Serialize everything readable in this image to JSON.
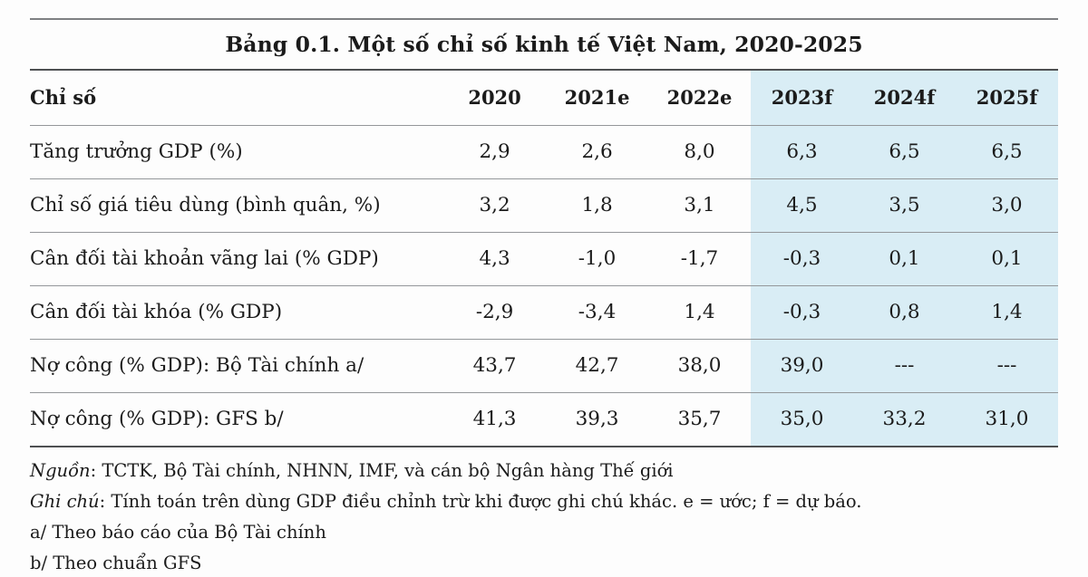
{
  "title": "Bảng 0.1. Một số chỉ số kinh tế Việt Nam, 2020-2025",
  "table": {
    "header": {
      "indicator": "Chỉ số",
      "years": [
        "2020",
        "2021e",
        "2022e",
        "2023f",
        "2024f",
        "2025f"
      ]
    },
    "rows": [
      {
        "label": "Tăng trưởng GDP (%)",
        "values": [
          "2,9",
          "2,6",
          "8,0",
          "6,3",
          "6,5",
          "6,5"
        ]
      },
      {
        "label": "Chỉ số giá tiêu dùng (bình quân, %)",
        "values": [
          "3,2",
          "1,8",
          "3,1",
          "4,5",
          "3,5",
          "3,0"
        ]
      },
      {
        "label": "Cân đối tài khoản vãng lai (% GDP)",
        "values": [
          "4,3",
          "-1,0",
          "-1,7",
          "-0,3",
          "0,1",
          "0,1"
        ]
      },
      {
        "label": "Cân đối tài khóa (% GDP)",
        "values": [
          "-2,9",
          "-3,4",
          "1,4",
          "-0,3",
          "0,8",
          "1,4"
        ]
      },
      {
        "label": "Nợ công (% GDP): Bộ Tài chính a/",
        "values": [
          "43,7",
          "42,7",
          "38,0",
          "39,0",
          "---",
          "---"
        ]
      },
      {
        "label": "Nợ công (% GDP): GFS b/",
        "values": [
          "41,3",
          "39,3",
          "35,7",
          "35,0",
          "33,2",
          "31,0"
        ]
      }
    ],
    "forecast_start_index": 3,
    "highlight_color": "#d9edf5"
  },
  "notes": {
    "source_label": "Nguồn",
    "source_text": ": TCTK, Bộ Tài chính, NHNN, IMF, và cán bộ Ngân hàng Thế giới",
    "note_label": "Ghi chú",
    "note_text": ": Tính toán trên dùng GDP điều chỉnh trừ khi được ghi chú khác. e = ước; f = dự báo.",
    "footnote_a": "a/ Theo báo cáo của Bộ Tài chính",
    "footnote_b": "b/ Theo chuẩn GFS"
  }
}
